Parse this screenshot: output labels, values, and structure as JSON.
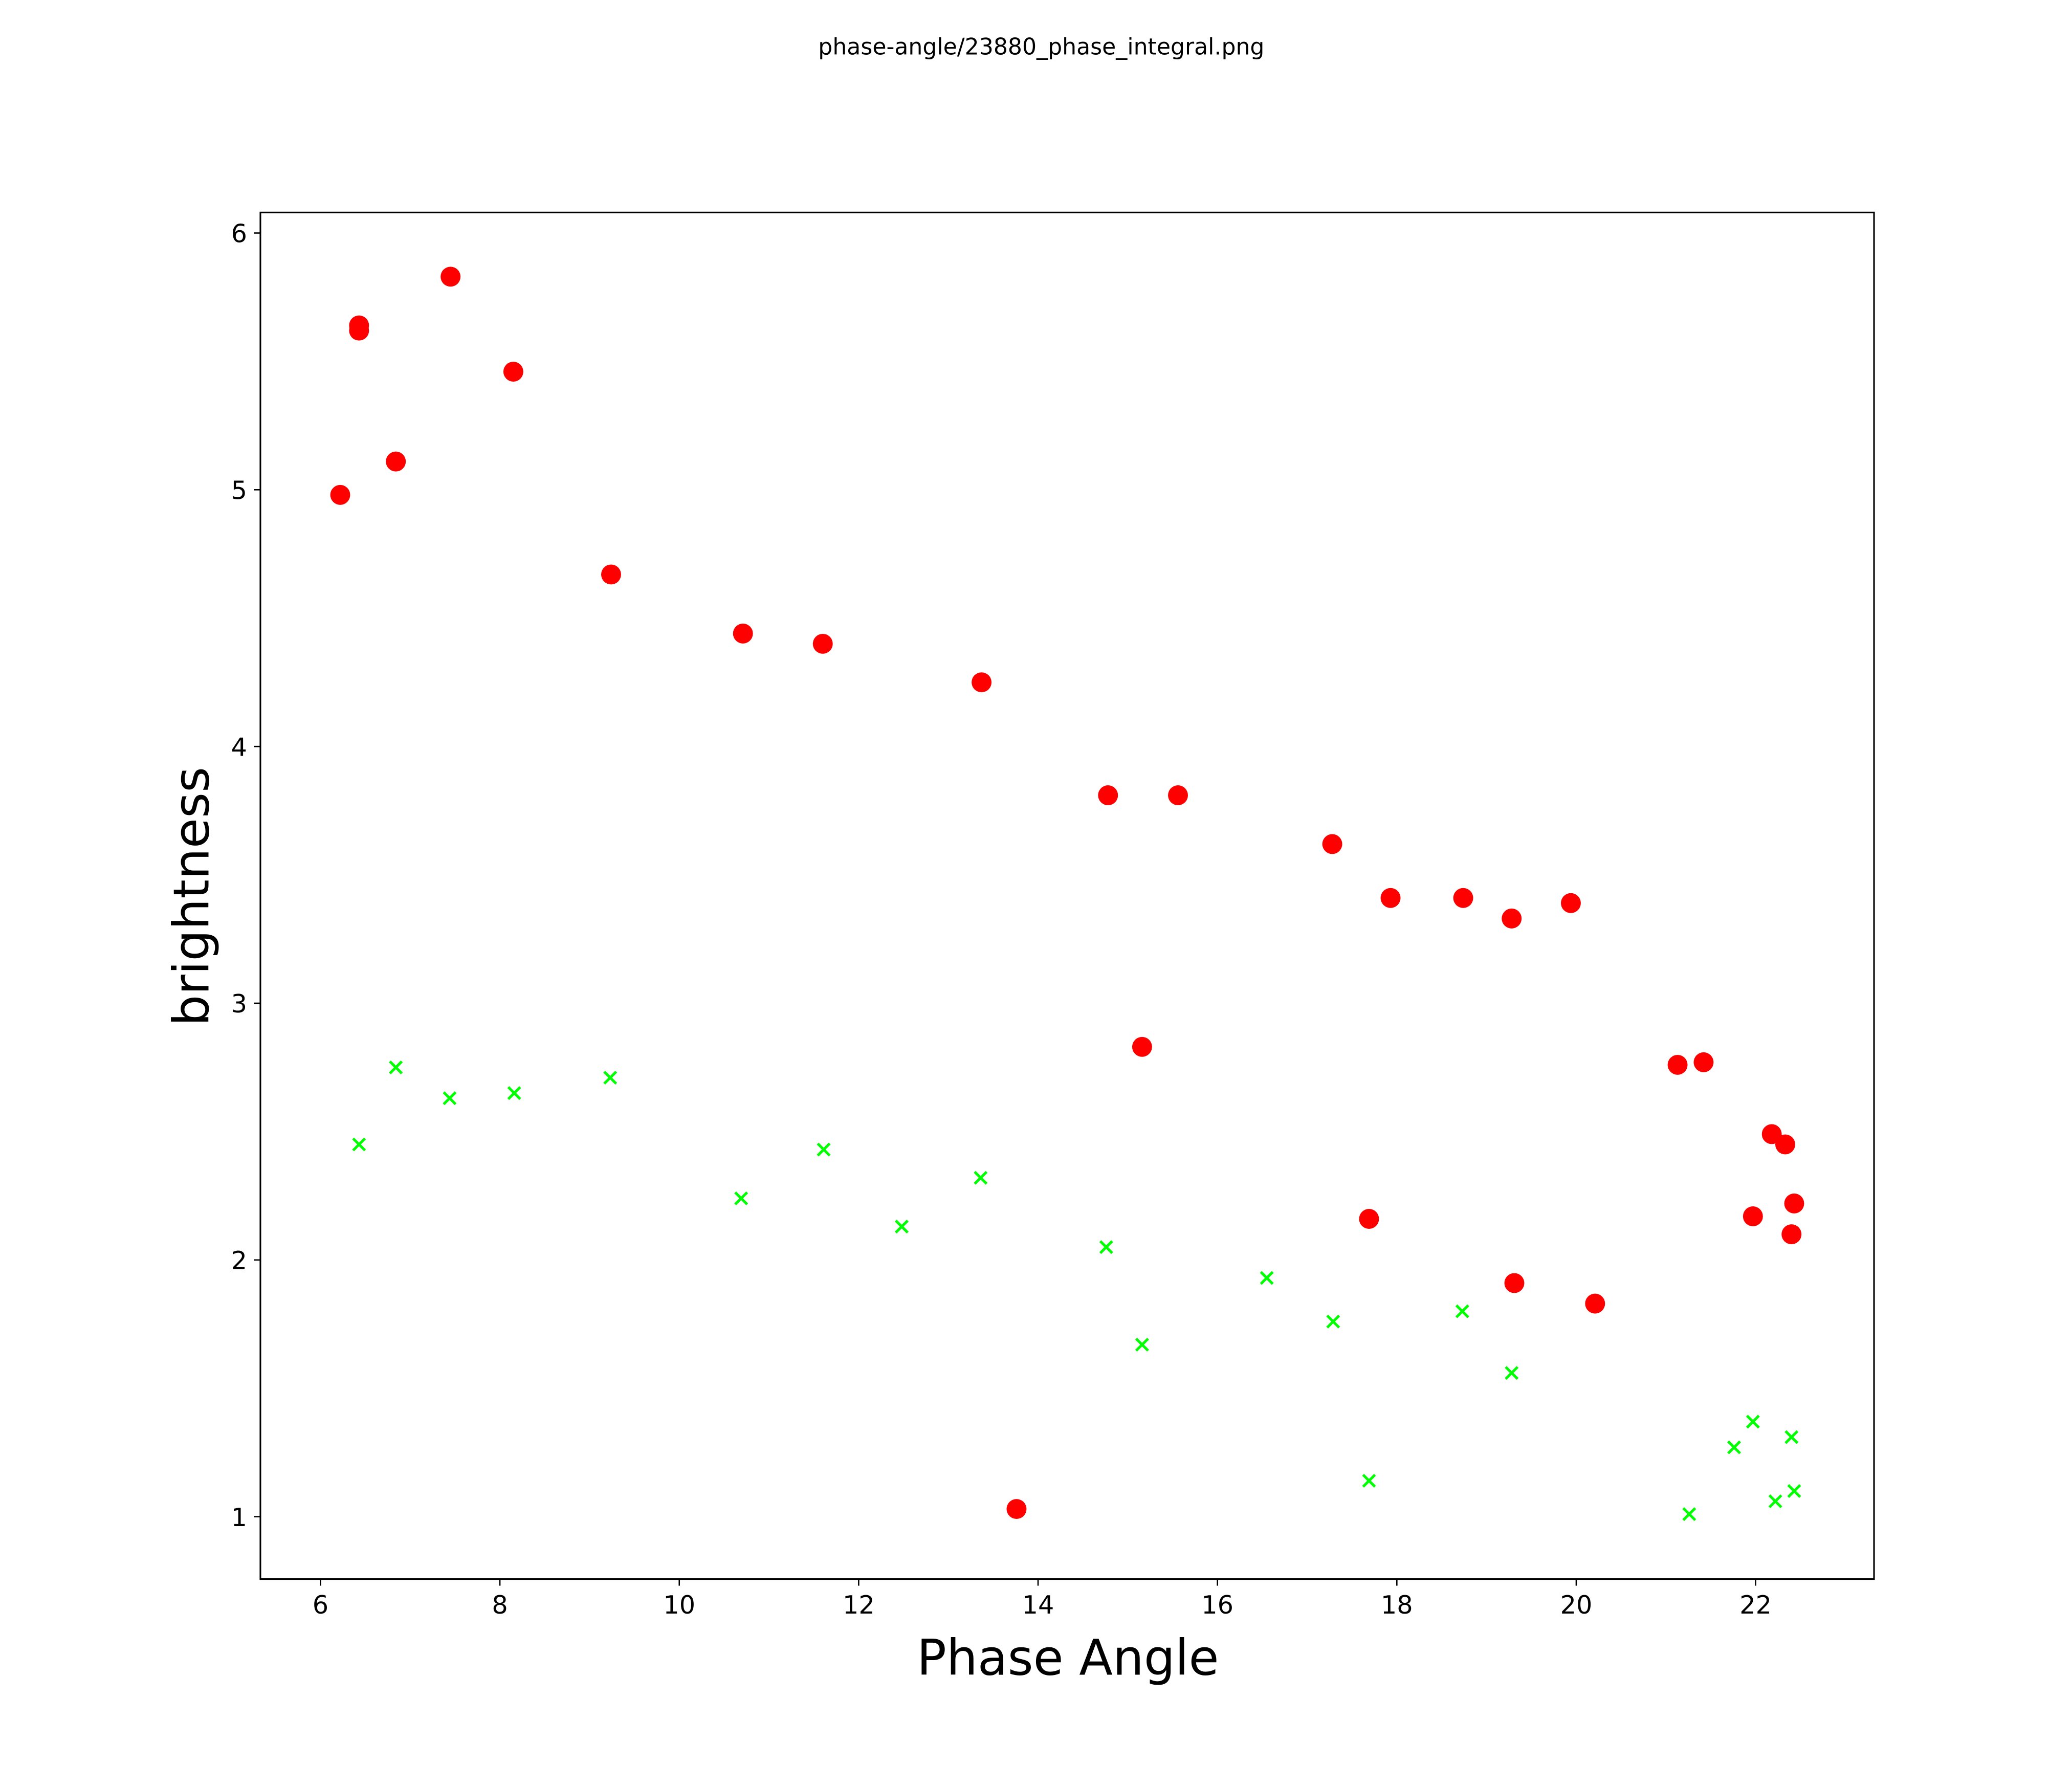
{
  "chart_data": {
    "type": "scatter",
    "title": "phase-angle/23880_phase_integral.png",
    "xlabel": "Phase Angle",
    "ylabel": "brightness",
    "xlim": [
      5.33,
      23.32
    ],
    "ylim": [
      0.757,
      6.08
    ],
    "xticks": [
      6,
      8,
      10,
      12,
      14,
      16,
      18,
      20,
      22
    ],
    "yticks": [
      1,
      2,
      3,
      4,
      5,
      6
    ],
    "grid": false,
    "series": [
      {
        "name": "red-circles",
        "marker": "circle",
        "color": "#ff0000",
        "points": [
          [
            6.22,
            4.98
          ],
          [
            6.43,
            5.64
          ],
          [
            6.43,
            5.62
          ],
          [
            7.45,
            5.83
          ],
          [
            8.15,
            5.46
          ],
          [
            6.84,
            5.11
          ],
          [
            9.24,
            4.67
          ],
          [
            10.71,
            4.44
          ],
          [
            11.6,
            4.4
          ],
          [
            13.37,
            4.25
          ],
          [
            14.78,
            3.81
          ],
          [
            15.56,
            3.81
          ],
          [
            17.28,
            3.62
          ],
          [
            17.93,
            3.41
          ],
          [
            18.74,
            3.41
          ],
          [
            19.28,
            3.33
          ],
          [
            19.94,
            3.39
          ],
          [
            15.16,
            2.83
          ],
          [
            21.13,
            2.76
          ],
          [
            21.42,
            2.77
          ],
          [
            22.18,
            2.49
          ],
          [
            22.33,
            2.45
          ],
          [
            22.43,
            2.22
          ],
          [
            21.97,
            2.17
          ],
          [
            22.4,
            2.1
          ],
          [
            17.69,
            2.16
          ],
          [
            19.31,
            1.91
          ],
          [
            20.21,
            1.83
          ],
          [
            13.76,
            1.03
          ]
        ]
      },
      {
        "name": "green-crosses",
        "marker": "x",
        "color": "#00ff00",
        "points": [
          [
            6.43,
            2.45
          ],
          [
            6.84,
            2.75
          ],
          [
            7.44,
            2.63
          ],
          [
            8.16,
            2.65
          ],
          [
            9.23,
            2.71
          ],
          [
            10.69,
            2.24
          ],
          [
            11.61,
            2.43
          ],
          [
            12.48,
            2.13
          ],
          [
            13.36,
            2.32
          ],
          [
            14.76,
            2.05
          ],
          [
            15.16,
            1.67
          ],
          [
            16.55,
            1.93
          ],
          [
            17.29,
            1.76
          ],
          [
            18.73,
            1.8
          ],
          [
            17.69,
            1.14
          ],
          [
            19.28,
            1.56
          ],
          [
            21.26,
            1.01
          ],
          [
            21.76,
            1.27
          ],
          [
            21.97,
            1.37
          ],
          [
            22.22,
            1.06
          ],
          [
            22.4,
            1.31
          ],
          [
            22.43,
            1.1
          ]
        ]
      }
    ]
  }
}
